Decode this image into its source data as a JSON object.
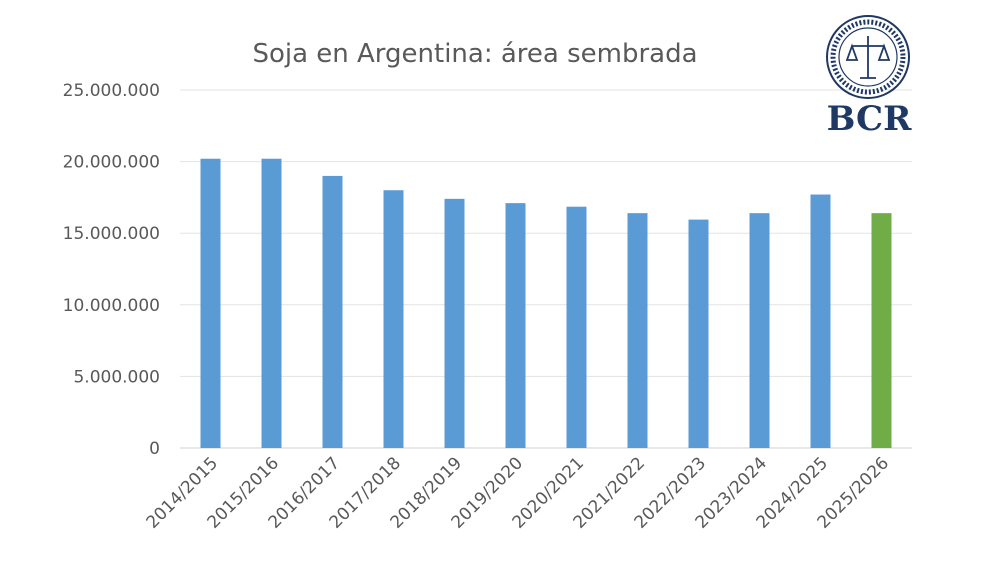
{
  "chart_data": {
    "type": "bar",
    "title": "Soja en Argentina: área sembrada",
    "xlabel": "",
    "ylabel": "",
    "ylim": [
      0,
      25000000
    ],
    "yticks": [
      0,
      5000000,
      10000000,
      15000000,
      20000000,
      25000000
    ],
    "ytick_labels": [
      "0",
      "5.000.000",
      "10.000.000",
      "15.000.000",
      "20.000.000",
      "25.000.000"
    ],
    "grid": true,
    "legend": "none",
    "categories": [
      "2014/2015",
      "2015/2016",
      "2016/2017",
      "2017/2018",
      "2018/2019",
      "2019/2020",
      "2020/2021",
      "2021/2022",
      "2022/2023",
      "2023/2024",
      "2024/2025",
      "2025/2026"
    ],
    "values": [
      20200000,
      20200000,
      19000000,
      18000000,
      17400000,
      17100000,
      16850000,
      16400000,
      15950000,
      16400000,
      17700000,
      16400000
    ],
    "colors": [
      "#5B9BD5",
      "#5B9BD5",
      "#5B9BD5",
      "#5B9BD5",
      "#5B9BD5",
      "#5B9BD5",
      "#5B9BD5",
      "#5B9BD5",
      "#5B9BD5",
      "#5B9BD5",
      "#5B9BD5",
      "#70AD47"
    ]
  },
  "logo": {
    "text": "BCR",
    "seal_text": "BOLSA DE COMERCIO DE ROSARIO",
    "color": "#1F3864"
  }
}
